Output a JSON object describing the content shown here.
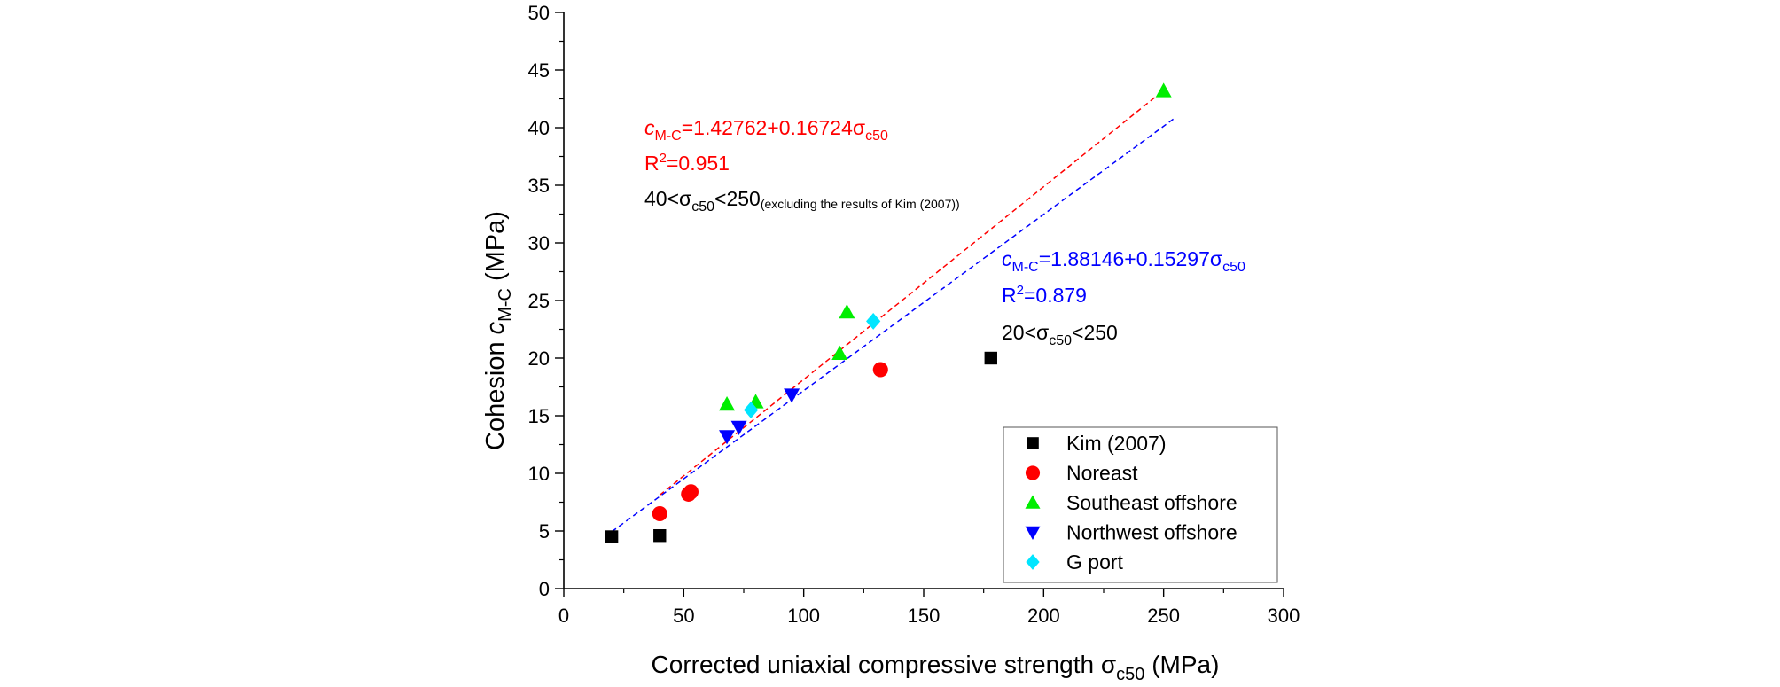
{
  "chart_data": {
    "type": "scatter",
    "xlabel": "Corrected uniaxial compressive strength",
    "xlabel_symbol": "σ",
    "xlabel_sub": "c50",
    "xlabel_unit": "(MPa)",
    "ylabel": "Cohesion",
    "ylabel_symbol": "c",
    "ylabel_sub": "M-C",
    "ylabel_unit": "(MPa)",
    "xlim": [
      0,
      300
    ],
    "ylim": [
      0,
      50
    ],
    "xticks": [
      0,
      50,
      100,
      150,
      200,
      250,
      300
    ],
    "yticks": [
      0,
      5,
      10,
      15,
      20,
      25,
      30,
      35,
      40,
      45,
      50
    ],
    "legend_position": "bottom-right",
    "series": [
      {
        "name": "Kim (2007)",
        "marker": "square",
        "color": "#000000",
        "points": [
          [
            20,
            4.5
          ],
          [
            40,
            4.6
          ],
          [
            178,
            20
          ]
        ]
      },
      {
        "name": "Noreast",
        "marker": "circle",
        "color": "#ff0000",
        "points": [
          [
            40,
            6.5
          ],
          [
            52,
            8.2
          ],
          [
            53,
            8.4
          ],
          [
            132,
            19
          ]
        ]
      },
      {
        "name": "Southeast offshore",
        "marker": "triangle-up",
        "color": "#00ee00",
        "points": [
          [
            68,
            16
          ],
          [
            80,
            16.2
          ],
          [
            115,
            20.4
          ],
          [
            118,
            24
          ],
          [
            250,
            43.2
          ]
        ]
      },
      {
        "name": "Northwest offshore",
        "marker": "triangle-down",
        "color": "#0000ff",
        "points": [
          [
            68,
            13.2
          ],
          [
            73,
            14
          ],
          [
            95,
            16.8
          ]
        ]
      },
      {
        "name": "G port",
        "marker": "diamond",
        "color": "#00e5ff",
        "points": [
          [
            78,
            15.5
          ],
          [
            129,
            23.2
          ]
        ]
      }
    ],
    "fits": [
      {
        "color": "#ff0000",
        "intercept": 1.42762,
        "slope": 0.16724,
        "x_range": [
          40,
          250
        ]
      },
      {
        "color": "#0000ff",
        "intercept": 1.88146,
        "slope": 0.15297,
        "x_range": [
          20,
          255
        ]
      }
    ],
    "annotations": {
      "red": {
        "c": "c",
        "c_sub": "M-C",
        "eq": "=1.42762+0.16724σ",
        "eq_sub": "c50",
        "r_base": "R",
        "r_sup": "2",
        "r_val": "=0.951",
        "range_pre": "40<σ",
        "range_sub": "c50",
        "range_post": "<250",
        "range_note": "(excluding the results of Kim (2007))"
      },
      "blue": {
        "c": "c",
        "c_sub": "M-C",
        "eq": "=1.88146+0.15297σ",
        "eq_sub": "c50",
        "r_base": "R",
        "r_sup": "2",
        "r_val": "=0.879",
        "range_pre": "20<σ",
        "range_sub": "c50",
        "range_post": "<250"
      }
    }
  }
}
